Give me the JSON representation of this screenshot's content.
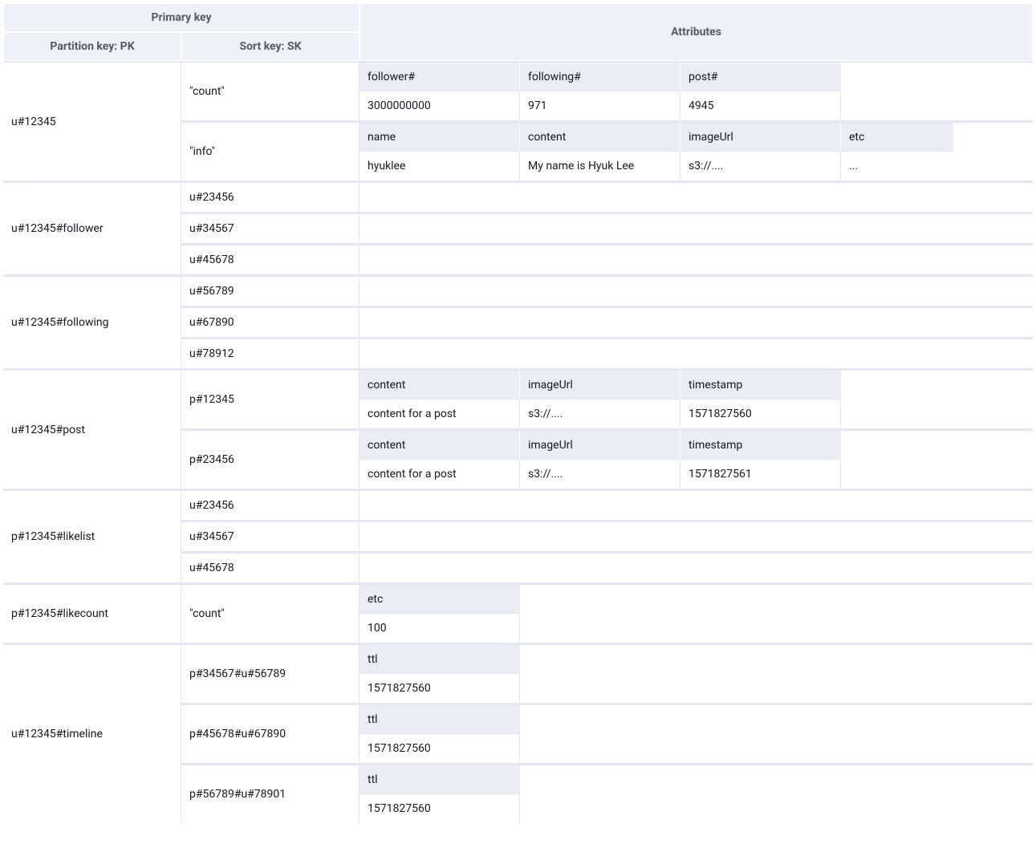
{
  "headers": {
    "primary_key": "Primary key",
    "partition_key": "Partition key: PK",
    "sort_key": "Sort key: SK",
    "attributes": "Attributes"
  },
  "colors": {
    "header_bg": "#eef1f7",
    "attr_header_bg": "#eaedf4",
    "border": "#e4e7f0",
    "text": "#16191f",
    "header_text": "#545b64",
    "background": "#ffffff"
  },
  "column_widths": {
    "pk": 222,
    "sk": 222,
    "attr": 200,
    "attr_last": 140
  },
  "groups": [
    {
      "pk": "u#12345",
      "sk_rows": [
        {
          "sk": "\"count\"",
          "attr_headers": [
            "follower#",
            "following#",
            "post#"
          ],
          "attr_values": [
            "3000000000",
            "971",
            "4945"
          ],
          "cols": 3
        },
        {
          "sk": "\"info\"",
          "attr_headers": [
            "name",
            "content",
            "imageUrl",
            "etc"
          ],
          "attr_values": [
            "hyuklee",
            "My name is Hyuk Lee",
            "s3://....",
            "..."
          ],
          "cols": 4
        }
      ]
    },
    {
      "pk": "u#12345#follower",
      "sk_rows": [
        {
          "sk": "u#23456",
          "attr_headers": [],
          "attr_values": [],
          "cols": 0
        },
        {
          "sk": "u#34567",
          "attr_headers": [],
          "attr_values": [],
          "cols": 0
        },
        {
          "sk": "u#45678",
          "attr_headers": [],
          "attr_values": [],
          "cols": 0
        }
      ]
    },
    {
      "pk": "u#12345#following",
      "sk_rows": [
        {
          "sk": "u#56789",
          "attr_headers": [],
          "attr_values": [],
          "cols": 0
        },
        {
          "sk": "u#67890",
          "attr_headers": [],
          "attr_values": [],
          "cols": 0
        },
        {
          "sk": "u#78912",
          "attr_headers": [],
          "attr_values": [],
          "cols": 0
        }
      ]
    },
    {
      "pk": "u#12345#post",
      "sk_rows": [
        {
          "sk": "p#12345",
          "attr_headers": [
            "content",
            "imageUrl",
            "timestamp"
          ],
          "attr_values": [
            "content for a post",
            "s3://....",
            "1571827560"
          ],
          "cols": 3
        },
        {
          "sk": "p#23456",
          "attr_headers": [
            "content",
            "imageUrl",
            "timestamp"
          ],
          "attr_values": [
            "content for a post",
            "s3://....",
            "1571827561"
          ],
          "cols": 3
        }
      ]
    },
    {
      "pk": "p#12345#likelist",
      "sk_rows": [
        {
          "sk": "u#23456",
          "attr_headers": [],
          "attr_values": [],
          "cols": 0
        },
        {
          "sk": "u#34567",
          "attr_headers": [],
          "attr_values": [],
          "cols": 0
        },
        {
          "sk": "u#45678",
          "attr_headers": [],
          "attr_values": [],
          "cols": 0
        }
      ]
    },
    {
      "pk": "p#12345#likecount",
      "sk_rows": [
        {
          "sk": "\"count\"",
          "attr_headers": [
            "etc"
          ],
          "attr_values": [
            "100"
          ],
          "cols": 1
        }
      ]
    },
    {
      "pk": "u#12345#timeline",
      "sk_rows": [
        {
          "sk": "p#34567#u#56789",
          "attr_headers": [
            "ttl"
          ],
          "attr_values": [
            "1571827560"
          ],
          "cols": 1
        },
        {
          "sk": "p#45678#u#67890",
          "attr_headers": [
            "ttl"
          ],
          "attr_values": [
            "1571827560"
          ],
          "cols": 1
        },
        {
          "sk": "p#56789#u#78901",
          "attr_headers": [
            "ttl"
          ],
          "attr_values": [
            "1571827560"
          ],
          "cols": 1
        }
      ]
    }
  ]
}
